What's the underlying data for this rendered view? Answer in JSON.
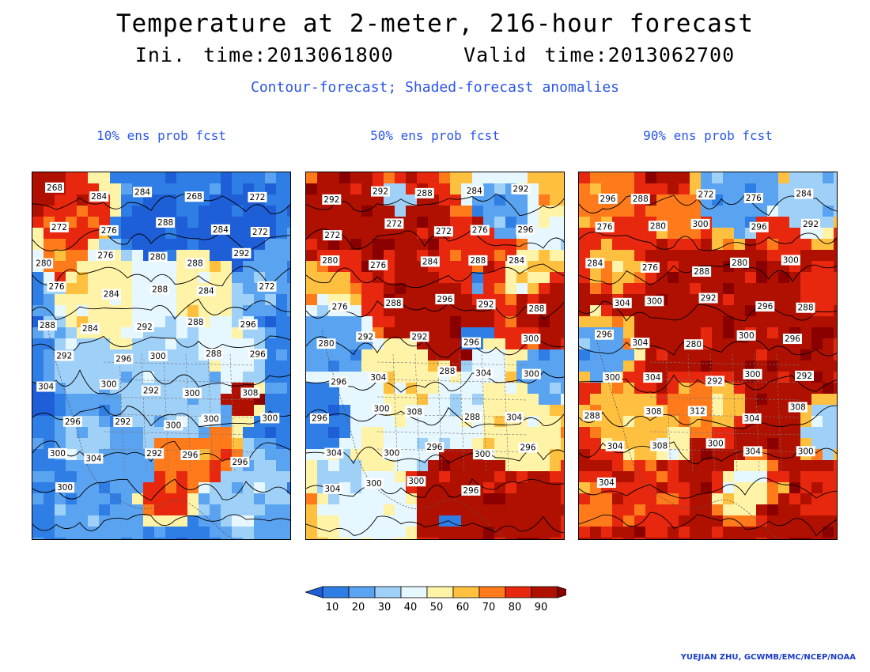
{
  "title": "Temperature at 2-meter, 216-hour forecast",
  "subtitle": {
    "init": "Ini. time:2013061800",
    "valid": "Valid time:2013062700"
  },
  "description": "Contour-forecast; Shaded-forecast anomalies",
  "panels": [
    {
      "title": "10% ens prob fcst",
      "dominant": "cool",
      "contour_labels": [
        "268",
        "284",
        "284",
        "268",
        "272",
        "272",
        "276",
        "288",
        "284",
        "272",
        "280",
        "276",
        "280",
        "288",
        "292",
        "276",
        "284",
        "288",
        "284",
        "272",
        "288",
        "284",
        "292",
        "288",
        "296",
        "292",
        "296",
        "300",
        "288",
        "296",
        "304",
        "300",
        "292",
        "300",
        "308",
        "296",
        "292",
        "300",
        "300",
        "300",
        "300",
        "304",
        "292",
        "296",
        "296",
        "300"
      ]
    },
    {
      "title": "50% ens prob fcst",
      "dominant": "mixed",
      "contour_labels": [
        "292",
        "292",
        "288",
        "284",
        "292",
        "272",
        "272",
        "272",
        "276",
        "296",
        "280",
        "276",
        "284",
        "288",
        "284",
        "276",
        "288",
        "296",
        "292",
        "288",
        "280",
        "292",
        "292",
        "296",
        "300",
        "296",
        "304",
        "288",
        "304",
        "300",
        "296",
        "300",
        "308",
        "288",
        "304",
        "304",
        "300",
        "296",
        "300",
        "296",
        "304",
        "300",
        "300",
        "296"
      ]
    },
    {
      "title": "90% ens prob fcst",
      "dominant": "warm",
      "contour_labels": [
        "296",
        "288",
        "272",
        "276",
        "284",
        "276",
        "280",
        "300",
        "296",
        "292",
        "284",
        "276",
        "288",
        "280",
        "300",
        "304",
        "300",
        "292",
        "296",
        "288",
        "296",
        "304",
        "280",
        "300",
        "296",
        "300",
        "304",
        "292",
        "300",
        "292",
        "288",
        "308",
        "312",
        "304",
        "308",
        "304",
        "308",
        "300",
        "304",
        "300",
        "304"
      ]
    }
  ],
  "colorbar": {
    "ticks": [
      "10",
      "20",
      "30",
      "40",
      "50",
      "60",
      "70",
      "80",
      "90"
    ],
    "colors": [
      "#1e5fd8",
      "#2f7ee6",
      "#5aa3f0",
      "#9fd0f8",
      "#e6f7ff",
      "#fff3a8",
      "#ffc040",
      "#ff7a1a",
      "#e8280e",
      "#b01000",
      "#8a0000"
    ]
  },
  "credit": "YUEJIAN ZHU, GCWMB/EMC/NCEP/NOAA"
}
